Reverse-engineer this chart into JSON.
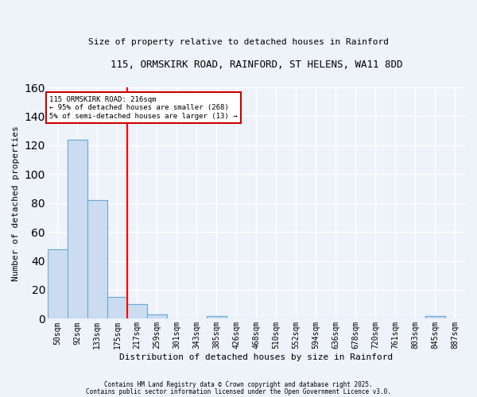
{
  "title": "115, ORMSKIRK ROAD, RAINFORD, ST HELENS, WA11 8DD",
  "subtitle": "Size of property relative to detached houses in Rainford",
  "xlabel": "Distribution of detached houses by size in Rainford",
  "ylabel": "Number of detached properties",
  "bar_color": "#ccdcf0",
  "bar_edge_color": "#6aaad4",
  "categories": [
    "50sqm",
    "92sqm",
    "133sqm",
    "175sqm",
    "217sqm",
    "259sqm",
    "301sqm",
    "343sqm",
    "385sqm",
    "426sqm",
    "468sqm",
    "510sqm",
    "552sqm",
    "594sqm",
    "636sqm",
    "678sqm",
    "720sqm",
    "761sqm",
    "803sqm",
    "845sqm",
    "887sqm"
  ],
  "values": [
    48,
    124,
    82,
    15,
    10,
    3,
    0,
    0,
    2,
    0,
    0,
    0,
    0,
    0,
    0,
    0,
    0,
    0,
    0,
    2,
    0
  ],
  "red_line_x": 3.5,
  "ylim": [
    0,
    160
  ],
  "yticks": [
    0,
    20,
    40,
    60,
    80,
    100,
    120,
    140,
    160
  ],
  "annotation_text": "115 ORMSKIRK ROAD: 216sqm\n← 95% of detached houses are smaller (268)\n5% of semi-detached houses are larger (13) →",
  "annotation_box_color": "#ffffff",
  "annotation_box_edge": "#cc0000",
  "fig_bg_color": "#eef2f9",
  "ax_bg_color": "#eef2f9",
  "grid_color": "#ffffff",
  "footer1": "Contains HM Land Registry data © Crown copyright and database right 2025.",
  "footer2": "Contains public sector information licensed under the Open Government Licence v3.0.",
  "title_fontsize": 9,
  "subtitle_fontsize": 8
}
